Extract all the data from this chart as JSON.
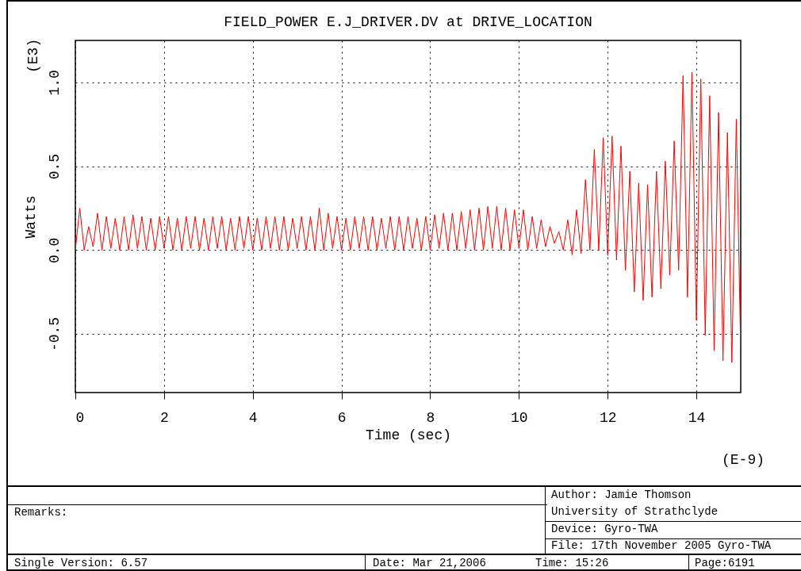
{
  "chart_data": {
    "type": "line",
    "title": "FIELD_POWER E.J_DRIVER.DV at DRIVE_LOCATION",
    "xlabel": "Time   (sec)",
    "ylabel": "Watts",
    "annotations": [
      "(E3)",
      "(E-9)",
      "Remarks:",
      "Author: Jamie Thomson",
      "University of Strathclyde",
      "Device: Gyro-TWA",
      "File: 17th November 2005 Gyro-TWA",
      "Single    Version: 6.57",
      "Date: Mar 21,2006",
      "Time: 15:26",
      "Page:6191"
    ],
    "x": [
      0,
      0.1,
      0.2,
      0.3,
      0.4,
      0.5,
      0.6,
      0.7,
      0.8,
      0.9,
      1,
      1.1,
      1.2,
      1.3,
      1.4,
      1.5,
      1.6,
      1.7,
      1.8,
      1.9,
      2,
      2.1,
      2.2,
      2.3,
      2.4,
      2.5,
      2.6,
      2.7,
      2.8,
      2.9,
      3,
      3.1,
      3.2,
      3.3,
      3.4,
      3.5,
      3.6,
      3.7,
      3.8,
      3.9,
      4,
      4.1,
      4.2,
      4.3,
      4.4,
      4.5,
      4.6,
      4.7,
      4.8,
      4.9,
      5,
      5.1,
      5.2,
      5.3,
      5.4,
      5.5,
      5.6,
      5.7,
      5.8,
      5.9,
      6,
      6.1,
      6.2,
      6.3,
      6.4,
      6.5,
      6.6,
      6.7,
      6.8,
      6.9,
      7,
      7.1,
      7.2,
      7.3,
      7.4,
      7.5,
      7.6,
      7.7,
      7.8,
      7.9,
      8,
      8.1,
      8.2,
      8.3,
      8.4,
      8.5,
      8.6,
      8.7,
      8.8,
      8.9,
      9,
      9.1,
      9.2,
      9.3,
      9.4,
      9.5,
      9.6,
      9.7,
      9.8,
      9.9,
      10,
      10.1,
      10.2,
      10.3,
      10.4,
      10.5,
      10.6,
      10.7,
      10.8,
      10.9,
      11,
      11.1,
      11.2,
      11.3,
      11.4,
      11.5,
      11.6,
      11.7,
      11.8,
      11.9,
      12,
      12.1,
      12.2,
      12.3,
      12.4,
      12.5,
      12.6,
      12.7,
      12.8,
      12.9,
      13,
      13.1,
      13.2,
      13.3,
      13.4,
      13.5,
      13.6,
      13.7,
      13.8,
      13.9,
      14,
      14.1,
      14.2,
      14.3,
      14.4,
      14.5,
      14.6,
      14.7,
      14.8,
      14.9,
      15
    ],
    "values": [
      0,
      0.25,
      0,
      0.14,
      0.02,
      0.22,
      0,
      0.2,
      0.01,
      0.19,
      0,
      0.2,
      0,
      0.21,
      0.01,
      0.2,
      0,
      0.19,
      0,
      0.2,
      0.01,
      0.2,
      0,
      0.19,
      0,
      0.2,
      0.01,
      0.2,
      0,
      0.19,
      0,
      0.2,
      0.01,
      0.2,
      0,
      0.19,
      0,
      0.2,
      0.01,
      0.2,
      0,
      0.19,
      0,
      0.2,
      0.01,
      0.2,
      0,
      0.2,
      0,
      0.19,
      0.01,
      0.2,
      0,
      0.2,
      0,
      0.25,
      0,
      0.22,
      0.01,
      0.2,
      0,
      0.19,
      0,
      0.2,
      0.01,
      0.2,
      0,
      0.2,
      0,
      0.19,
      0.01,
      0.2,
      0,
      0.2,
      0,
      0.2,
      0.01,
      0.19,
      0,
      0.2,
      0,
      0.21,
      0.01,
      0.22,
      0,
      0.22,
      0,
      0.23,
      0.01,
      0.24,
      0,
      0.25,
      0,
      0.26,
      0.01,
      0.26,
      0,
      0.25,
      0,
      0.24,
      0.01,
      0.24,
      0,
      0.2,
      0.01,
      0.18,
      0.02,
      0.14,
      0.04,
      0.11,
      0,
      0.18,
      -0.03,
      0.24,
      -0.02,
      0.42,
      0,
      0.6,
      0,
      0.67,
      -0.03,
      0.68,
      -0.06,
      0.62,
      -0.12,
      0.47,
      -0.25,
      0.4,
      -0.3,
      0.39,
      -0.28,
      0.47,
      -0.23,
      0.53,
      -0.15,
      0.65,
      -0.12,
      1.04,
      -0.28,
      1.06,
      -0.42,
      1.02,
      -0.51,
      0.92,
      -0.6,
      0.82,
      -0.66,
      0.7,
      -0.67,
      0.78,
      -0.61
    ],
    "color": "#ff0000",
    "xlim": [
      0,
      15
    ],
    "ylim": [
      -0.85,
      1.25
    ],
    "xticks": [
      0,
      2,
      4,
      6,
      8,
      10,
      12,
      14
    ],
    "yticks": [
      -0.5,
      {
        "value": 0,
        "label": "0.0"
      },
      0.5,
      {
        "value": 1,
        "label": "1.0"
      }
    ],
    "grid": true
  }
}
